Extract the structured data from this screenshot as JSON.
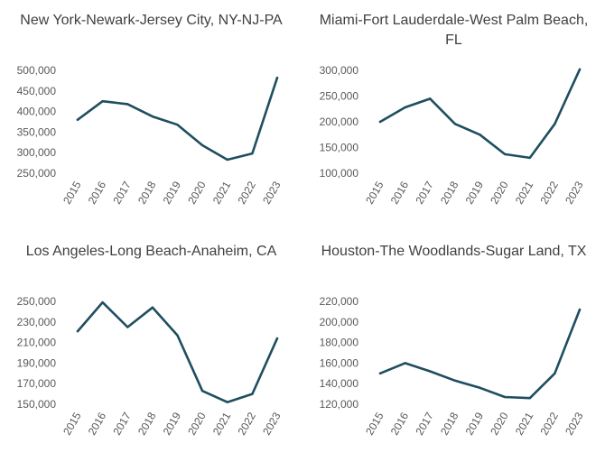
{
  "chart_data": [
    {
      "type": "line",
      "title": "New York-Newark-Jersey City, NY-NJ-PA",
      "x": [
        "2015",
        "2016",
        "2017",
        "2018",
        "2019",
        "2020",
        "2021",
        "2022",
        "2023"
      ],
      "values": [
        380000,
        425000,
        418000,
        388000,
        368000,
        318000,
        283000,
        298000,
        482000
      ],
      "ylim": [
        250000,
        500000
      ],
      "yticks": [
        250000,
        300000,
        350000,
        400000,
        450000,
        500000
      ],
      "ytick_labels": [
        "250,000",
        "300,000",
        "350,000",
        "400,000",
        "450,000",
        "500,000"
      ],
      "color": "#1f4e5f",
      "grid": false
    },
    {
      "type": "line",
      "title": "Miami-Fort Lauderdale-West Palm Beach, FL",
      "x": [
        "2015",
        "2016",
        "2017",
        "2018",
        "2019",
        "2020",
        "2021",
        "2022",
        "2023"
      ],
      "values": [
        200000,
        228000,
        245000,
        196000,
        175000,
        137000,
        130000,
        196000,
        302000
      ],
      "ylim": [
        100000,
        300000
      ],
      "yticks": [
        100000,
        150000,
        200000,
        250000,
        300000
      ],
      "ytick_labels": [
        "100,000",
        "150,000",
        "200,000",
        "250,000",
        "300,000"
      ],
      "color": "#1f4e5f",
      "grid": false
    },
    {
      "type": "line",
      "title": "Los Angeles-Long Beach-Anaheim, CA",
      "x": [
        "2015",
        "2016",
        "2017",
        "2018",
        "2019",
        "2020",
        "2021",
        "2022",
        "2023"
      ],
      "values": [
        221000,
        249000,
        225000,
        244000,
        217000,
        163000,
        152000,
        160000,
        214000
      ],
      "ylim": [
        150000,
        250000
      ],
      "yticks": [
        150000,
        170000,
        190000,
        210000,
        230000,
        250000
      ],
      "ytick_labels": [
        "150,000",
        "170,000",
        "190,000",
        "210,000",
        "230,000",
        "250,000"
      ],
      "color": "#1f4e5f",
      "grid": false
    },
    {
      "type": "line",
      "title": "Houston-The Woodlands-Sugar Land, TX",
      "x": [
        "2015",
        "2016",
        "2017",
        "2018",
        "2019",
        "2020",
        "2021",
        "2022",
        "2023"
      ],
      "values": [
        150000,
        160000,
        152000,
        143000,
        136000,
        127000,
        126000,
        150000,
        212000
      ],
      "ylim": [
        120000,
        220000
      ],
      "yticks": [
        120000,
        140000,
        160000,
        180000,
        200000,
        220000
      ],
      "ytick_labels": [
        "120,000",
        "140,000",
        "160,000",
        "180,000",
        "200,000",
        "220,000"
      ],
      "color": "#1f4e5f",
      "grid": false
    }
  ]
}
